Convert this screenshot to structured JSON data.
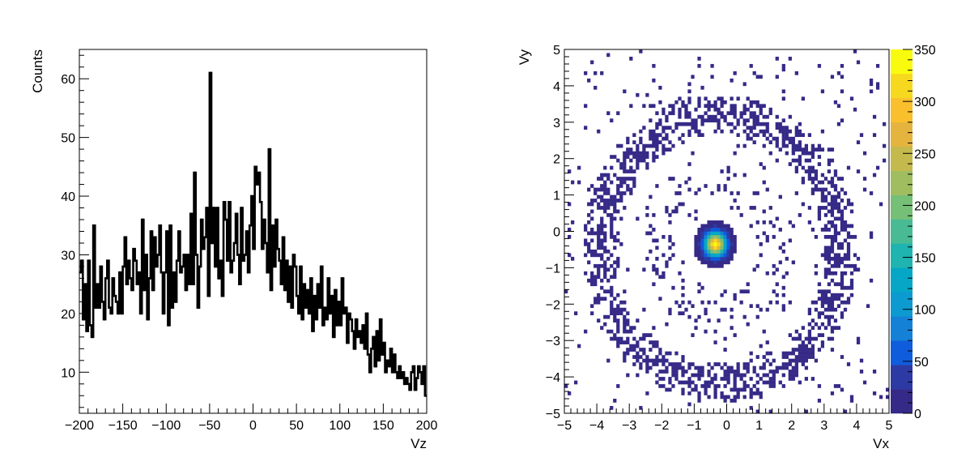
{
  "chart_data": [
    {
      "type": "histogram",
      "xlabel": "Vz",
      "ylabel": "Counts",
      "xlim": [
        -200,
        200
      ],
      "ylim": [
        3,
        65
      ],
      "x_ticks": [
        -200,
        -150,
        -100,
        -50,
        0,
        50,
        100,
        150,
        200
      ],
      "x_tick_labels": [
        "−200",
        "−150",
        "−100",
        "−50",
        "0",
        "50",
        "100",
        "150",
        "200"
      ],
      "y_ticks": [
        10,
        20,
        30,
        40,
        50,
        60
      ],
      "y_tick_labels": [
        "10",
        "20",
        "30",
        "40",
        "50",
        "60"
      ],
      "grid": false,
      "line_color": "#000000",
      "bin_width": 2,
      "x": [
        -199,
        -197,
        -195,
        -193,
        -191,
        -189,
        -187,
        -185,
        -183,
        -181,
        -179,
        -177,
        -175,
        -173,
        -171,
        -169,
        -167,
        -165,
        -163,
        -161,
        -159,
        -157,
        -155,
        -153,
        -151,
        -149,
        -147,
        -145,
        -143,
        -141,
        -139,
        -137,
        -135,
        -133,
        -131,
        -129,
        -127,
        -125,
        -123,
        -121,
        -119,
        -117,
        -115,
        -113,
        -111,
        -109,
        -107,
        -105,
        -103,
        -101,
        -99,
        -97,
        -95,
        -93,
        -91,
        -89,
        -87,
        -85,
        -83,
        -81,
        -79,
        -77,
        -75,
        -73,
        -71,
        -69,
        -67,
        -65,
        -63,
        -61,
        -59,
        -57,
        -55,
        -53,
        -51,
        -49,
        -47,
        -45,
        -43,
        -41,
        -39,
        -37,
        -35,
        -33,
        -31,
        -29,
        -27,
        -25,
        -23,
        -21,
        -19,
        -17,
        -15,
        -13,
        -11,
        -9,
        -7,
        -5,
        -3,
        -1,
        1,
        3,
        5,
        7,
        9,
        11,
        13,
        15,
        17,
        19,
        21,
        23,
        25,
        27,
        29,
        31,
        33,
        35,
        37,
        39,
        41,
        43,
        45,
        47,
        49,
        51,
        53,
        55,
        57,
        59,
        61,
        63,
        65,
        67,
        69,
        71,
        73,
        75,
        77,
        79,
        81,
        83,
        85,
        87,
        89,
        91,
        93,
        95,
        97,
        99,
        101,
        103,
        105,
        107,
        109,
        111,
        113,
        115,
        117,
        119,
        121,
        123,
        125,
        127,
        129,
        131,
        133,
        135,
        137,
        139,
        141,
        143,
        145,
        147,
        149,
        151,
        153,
        155,
        157,
        159,
        161,
        163,
        165,
        167,
        169,
        171,
        173,
        175,
        177,
        179,
        181,
        183,
        185,
        187,
        189,
        191,
        193,
        195,
        197,
        199
      ],
      "values": [
        27,
        29,
        19,
        25,
        17,
        29,
        18,
        16,
        35,
        21,
        25,
        21,
        28,
        22,
        19,
        26,
        29,
        21,
        20,
        26,
        23,
        22,
        20,
        27,
        20,
        28,
        33,
        25,
        29,
        26,
        24,
        31,
        29,
        25,
        27,
        20,
        36,
        24,
        30,
        19,
        26,
        34,
        24,
        33,
        28,
        30,
        35,
        27,
        20,
        27,
        34,
        18,
        35,
        21,
        27,
        22,
        29,
        34,
        27,
        28,
        30,
        24,
        30,
        25,
        37,
        25,
        44,
        30,
        21,
        28,
        36,
        31,
        33,
        38,
        23,
        61,
        32,
        38,
        28,
        38,
        26,
        29,
        23,
        39,
        36,
        29,
        39,
        27,
        29,
        32,
        37,
        30,
        25,
        38,
        29,
        30,
        34,
        27,
        35,
        40,
        31,
        45,
        42,
        44,
        39,
        31,
        36,
        32,
        27,
        48,
        24,
        35,
        28,
        36,
        31,
        29,
        25,
        33,
        24,
        29,
        22,
        28,
        21,
        30,
        28,
        23,
        20,
        28,
        19,
        25,
        21,
        24,
        20,
        26,
        17,
        23,
        19,
        25,
        21,
        28,
        18,
        21,
        19,
        26,
        20,
        23,
        16,
        24,
        18,
        22,
        18,
        26,
        20,
        21,
        15,
        20,
        19,
        17,
        14,
        19,
        16,
        17,
        15,
        18,
        14,
        20,
        13,
        10,
        14,
        16,
        11,
        17,
        12,
        19,
        13,
        15,
        10,
        12,
        11,
        14,
        10,
        13,
        10,
        9,
        11,
        9,
        10,
        8,
        9,
        8,
        7,
        10,
        11,
        7,
        9,
        11,
        10,
        8,
        11,
        6
      ]
    },
    {
      "type": "heatmap",
      "xlabel": "Vx",
      "ylabel": "Vy",
      "xlim": [
        -5,
        5
      ],
      "ylim": [
        -5,
        5
      ],
      "bins_x": 100,
      "bins_y": 100,
      "x_ticks": [
        -5,
        -4,
        -3,
        -2,
        -1,
        0,
        1,
        2,
        3,
        4,
        5
      ],
      "x_tick_labels": [
        "−5",
        "−4",
        "−3",
        "−2",
        "−1",
        "0",
        "1",
        "2",
        "3",
        "4",
        "5"
      ],
      "y_ticks": [
        -5,
        -4,
        -3,
        -2,
        -1,
        0,
        1,
        2,
        3,
        4,
        5
      ],
      "y_tick_labels": [
        "−5",
        "−4",
        "−3",
        "−2",
        "−1",
        "0",
        "1",
        "2",
        "3",
        "4",
        "5"
      ],
      "zlim": [
        0,
        350
      ],
      "z_ticks": [
        0,
        50,
        100,
        150,
        200,
        250,
        300,
        350
      ],
      "z_tick_labels": [
        "0",
        "50",
        "100",
        "150",
        "200",
        "250",
        "300",
        "350"
      ],
      "colormap": "kBird",
      "palette": [
        "#352a87",
        "#2d3aa4",
        "#0f5cdd",
        "#1481d6",
        "#0d9ad0",
        "#06a7c6",
        "#1fb4b0",
        "#48bb94",
        "#76bf77",
        "#a0bd5f",
        "#c4b94d",
        "#e4b43f",
        "#fabf2c",
        "#f6d81f",
        "#f9fb0e"
      ],
      "grid": false,
      "components": [
        {
          "kind": "central-blob",
          "center": [
            -0.35,
            -0.35
          ],
          "peak": 340,
          "sigma": 0.22
        },
        {
          "kind": "outer-ring",
          "center": [
            -0.2,
            -0.5
          ],
          "radius": 3.7,
          "width": 0.55,
          "occupancy": 0.6
        },
        {
          "kind": "inner-halo",
          "center": [
            -0.2,
            -0.5
          ],
          "radius": 1.7,
          "width": 0.6,
          "occupancy": 0.12
        },
        {
          "kind": "background",
          "occupancy": 0.03
        }
      ]
    }
  ]
}
